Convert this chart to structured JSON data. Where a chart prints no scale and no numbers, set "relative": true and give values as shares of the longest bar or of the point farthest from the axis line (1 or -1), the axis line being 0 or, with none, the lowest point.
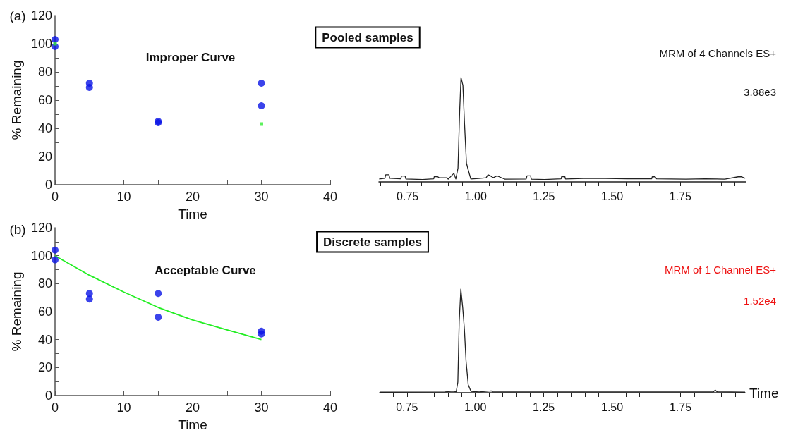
{
  "chart_data": [
    {
      "type": "scatter",
      "xlabel": "Time",
      "ylabel": "% Remaining",
      "marker": "circle",
      "annotations": [
        "(a)",
        "Improper Curve",
        "Pooled samples"
      ],
      "xlim": [
        0,
        40
      ],
      "xticks": [
        0,
        {
          "value": 5,
          "label": null
        },
        10,
        {
          "value": 15,
          "label": null
        },
        20,
        {
          "value": 25,
          "label": null
        },
        30,
        {
          "value": 35,
          "label": null
        },
        40
      ],
      "ylim": [
        0,
        120
      ],
      "yticks": [
        0,
        {
          "value": 10,
          "label": null
        },
        20,
        {
          "value": 30,
          "label": null
        },
        40,
        {
          "value": 50,
          "label": null
        },
        60,
        {
          "value": 70,
          "label": null
        },
        80,
        {
          "value": 90,
          "label": null
        },
        100,
        {
          "value": 110,
          "label": null
        },
        120
      ],
      "series": [
        {
          "color": "#0a14e6",
          "x": [
            0,
            0,
            5,
            5,
            15,
            15,
            30,
            30
          ],
          "values": [
            103,
            98,
            72,
            69,
            45,
            44,
            72,
            56
          ]
        },
        {
          "color": "#33ee33",
          "marker": "square",
          "x": [
            0,
            30
          ],
          "values": [
            100,
            43
          ]
        }
      ]
    },
    {
      "type": "line",
      "relative": true,
      "annotations": [
        "MRM of 4 Channels ES+",
        "3.88e3"
      ],
      "xlim": [
        0.645,
        1.99
      ],
      "xticks": [
        {
          "value": 0.65,
          "label": null
        },
        {
          "value": 0.7,
          "label": null
        },
        {
          "value": 0.75,
          "label": "0.75"
        },
        {
          "value": 0.8,
          "label": null
        },
        {
          "value": 0.85,
          "label": null
        },
        {
          "value": 0.9,
          "label": null
        },
        {
          "value": 0.95,
          "label": null
        },
        {
          "value": 1,
          "label": "1.00"
        },
        {
          "value": 1.05,
          "label": null
        },
        {
          "value": 1.1,
          "label": null
        },
        {
          "value": 1.15,
          "label": null
        },
        {
          "value": 1.2,
          "label": null
        },
        {
          "value": 1.25,
          "label": "1.25"
        },
        {
          "value": 1.3,
          "label": null
        },
        {
          "value": 1.35,
          "label": null
        },
        {
          "value": 1.4,
          "label": null
        },
        {
          "value": 1.45,
          "label": null
        },
        {
          "value": 1.5,
          "label": "1.50"
        },
        {
          "value": 1.55,
          "label": null
        },
        {
          "value": 1.6,
          "label": null
        },
        {
          "value": 1.65,
          "label": null
        },
        {
          "value": 1.7,
          "label": null
        },
        {
          "value": 1.75,
          "label": "1.75"
        },
        {
          "value": 1.8,
          "label": null
        },
        {
          "value": 1.85,
          "label": null
        },
        {
          "value": 1.9,
          "label": null
        },
        {
          "value": 1.95,
          "label": null
        }
      ],
      "series": [
        {
          "color": "#222222",
          "x": [
            0.646,
            0.667,
            0.67,
            0.682,
            0.685,
            0.725,
            0.728,
            0.741,
            0.744,
            0.805,
            0.846,
            0.848,
            0.861,
            0.866,
            0.895,
            0.899,
            0.911,
            0.92,
            0.927,
            0.935,
            0.941,
            0.946,
            0.953,
            0.959,
            0.966,
            0.973,
            0.982,
            1.011,
            1.038,
            1.045,
            1.054,
            1.064,
            1.078,
            1.091,
            1.107,
            1.185,
            1.188,
            1.201,
            1.204,
            1.252,
            1.313,
            1.315,
            1.327,
            1.329,
            1.395,
            1.475,
            1.555,
            1.645,
            1.647,
            1.658,
            1.663,
            1.77,
            1.841,
            1.913,
            1.962,
            1.975,
            1.988
          ],
          "values": [
            0.028,
            0.035,
            0.068,
            0.068,
            0.035,
            0.03,
            0.056,
            0.056,
            0.028,
            0.023,
            0.03,
            0.051,
            0.049,
            0.04,
            0.04,
            0.026,
            0.058,
            0.082,
            0.028,
            0.133,
            0.669,
            1,
            0.925,
            0.552,
            0.179,
            0.11,
            0.028,
            0.033,
            0.04,
            0.068,
            0.058,
            0.04,
            0.058,
            0.044,
            0.026,
            0.028,
            0.058,
            0.058,
            0.026,
            0.023,
            0.03,
            0.051,
            0.049,
            0.028,
            0.033,
            0.033,
            0.03,
            0.03,
            0.049,
            0.049,
            0.03,
            0.026,
            0.03,
            0.026,
            0.049,
            0.049,
            0.035
          ]
        }
      ]
    },
    {
      "type": "scatter",
      "xlabel": "Time",
      "ylabel": "% Remaining",
      "marker": "circle",
      "annotations": [
        "(b)",
        "Acceptable Curve",
        "Discrete samples"
      ],
      "xlim": [
        0,
        40
      ],
      "xticks": [
        0,
        {
          "value": 5,
          "label": null
        },
        10,
        {
          "value": 15,
          "label": null
        },
        20,
        {
          "value": 25,
          "label": null
        },
        30,
        {
          "value": 35,
          "label": null
        },
        40
      ],
      "ylim": [
        0,
        120
      ],
      "yticks": [
        0,
        {
          "value": 10,
          "label": null
        },
        20,
        {
          "value": 30,
          "label": null
        },
        40,
        {
          "value": 50,
          "label": null
        },
        60,
        {
          "value": 70,
          "label": null
        },
        80,
        {
          "value": 90,
          "label": null
        },
        100,
        {
          "value": 110,
          "label": null
        },
        120
      ],
      "series": [
        {
          "type": "line",
          "color": "#22ee22",
          "marker": "none",
          "x": [
            0,
            5,
            10,
            15,
            20,
            25,
            30
          ],
          "values": [
            100,
            86,
            74,
            63,
            54,
            47,
            40
          ]
        },
        {
          "color": "#0a14e6",
          "x": [
            0,
            0,
            5,
            5,
            15,
            15,
            30,
            30
          ],
          "values": [
            104,
            97,
            73,
            69,
            73,
            56,
            46,
            44
          ]
        }
      ]
    },
    {
      "type": "line",
      "relative": true,
      "xlabel": "Time",
      "annotations": [
        "MRM of 1 Channel ES+",
        "1.52e4"
      ],
      "xlim": [
        0.65,
        1.986
      ],
      "xticks": [
        {
          "value": 0.65,
          "label": null
        },
        {
          "value": 0.7,
          "label": null
        },
        {
          "value": 0.75,
          "label": "0.75"
        },
        {
          "value": 0.8,
          "label": null
        },
        {
          "value": 0.85,
          "label": null
        },
        {
          "value": 0.9,
          "label": null
        },
        {
          "value": 0.95,
          "label": null
        },
        {
          "value": 1,
          "label": "1.00"
        },
        {
          "value": 1.05,
          "label": null
        },
        {
          "value": 1.1,
          "label": null
        },
        {
          "value": 1.15,
          "label": null
        },
        {
          "value": 1.2,
          "label": null
        },
        {
          "value": 1.25,
          "label": "1.25"
        },
        {
          "value": 1.3,
          "label": null
        },
        {
          "value": 1.35,
          "label": null
        },
        {
          "value": 1.4,
          "label": null
        },
        {
          "value": 1.45,
          "label": null
        },
        {
          "value": 1.5,
          "label": "1.50"
        },
        {
          "value": 1.55,
          "label": null
        },
        {
          "value": 1.6,
          "label": null
        },
        {
          "value": 1.65,
          "label": null
        },
        {
          "value": 1.7,
          "label": null
        },
        {
          "value": 1.75,
          "label": "1.75"
        },
        {
          "value": 1.8,
          "label": null
        },
        {
          "value": 1.85,
          "label": null
        },
        {
          "value": 1.9,
          "label": null
        },
        {
          "value": 1.95,
          "label": null
        }
      ],
      "series": [
        {
          "color": "#222222",
          "x": [
            0.651,
            0.889,
            0.918,
            0.93,
            0.936,
            0.941,
            0.947,
            0.954,
            0.96,
            0.966,
            0.974,
            0.984,
            1.014,
            1.058,
            1.063,
            1.303,
            1.591,
            1.87,
            1.877,
            1.883,
            1.986
          ],
          "values": [
            0.005,
            0.008,
            0.015,
            0.01,
            0.102,
            0.689,
            1,
            0.816,
            0.612,
            0.306,
            0.077,
            0.013,
            0.008,
            0.018,
            0.008,
            0.008,
            0.008,
            0.008,
            0.026,
            0.01,
            0.005
          ]
        }
      ]
    }
  ]
}
